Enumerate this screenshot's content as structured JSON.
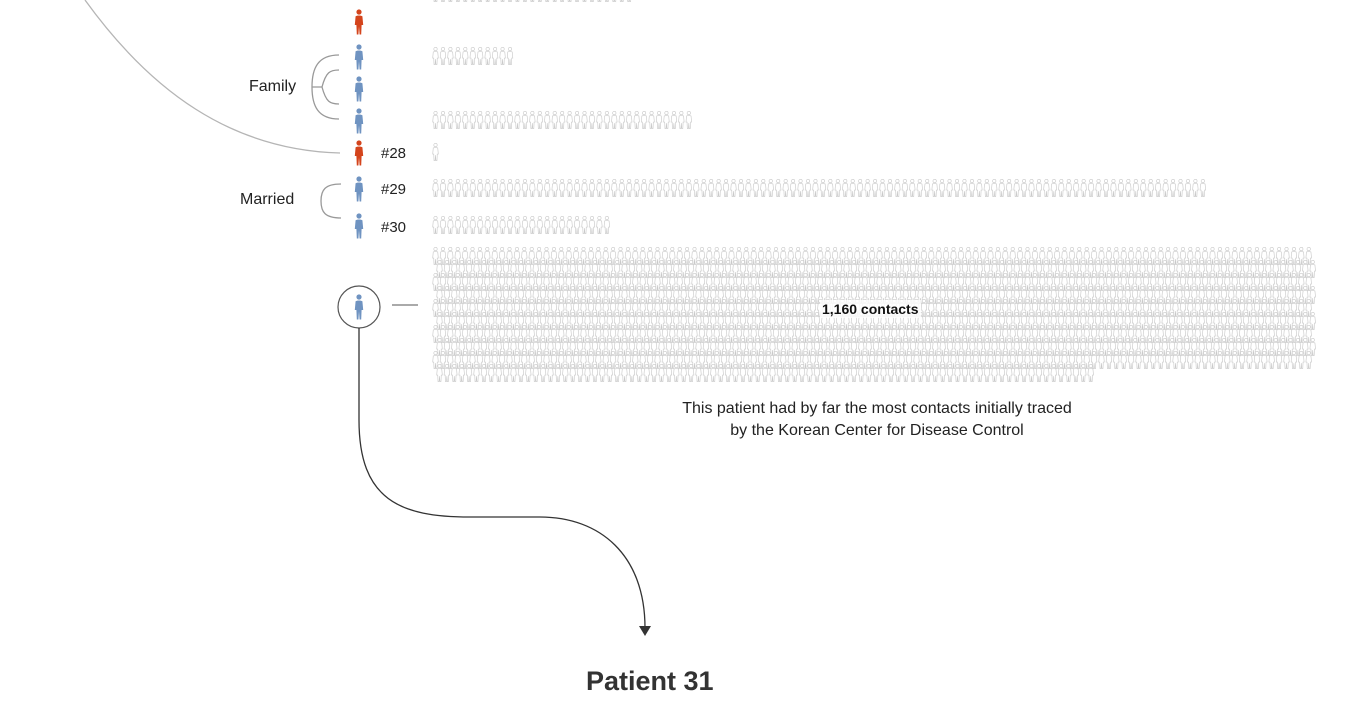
{
  "colors": {
    "infected": "#d4441c",
    "not_infected": "#6f93c1",
    "contact_outline": "#c9c9c9",
    "line": "#9a9a9a",
    "arrow": "#333333"
  },
  "groups": [
    {
      "label": "Family"
    },
    {
      "label": "Married"
    }
  ],
  "patients": [
    {
      "label": "",
      "status": "infected",
      "contacts": 0
    },
    {
      "label": "",
      "status": "not_infected",
      "contacts": 11
    },
    {
      "label": "",
      "status": "not_infected",
      "contacts": 0
    },
    {
      "label": "",
      "status": "not_infected",
      "contacts": 35
    },
    {
      "label": "#28",
      "status": "infected",
      "contacts": 1
    },
    {
      "label": "#29",
      "status": "not_infected",
      "contacts": 104
    },
    {
      "label": "#30",
      "status": "not_infected",
      "contacts": 24
    }
  ],
  "highlight": {
    "status": "not_infected",
    "contacts": 1160,
    "contacts_label": "1,160 contacts",
    "note_line1": "This patient had by far the most contacts initially traced",
    "note_line2": "by the Korean Center for Disease Control"
  },
  "final_label": "Patient 31"
}
